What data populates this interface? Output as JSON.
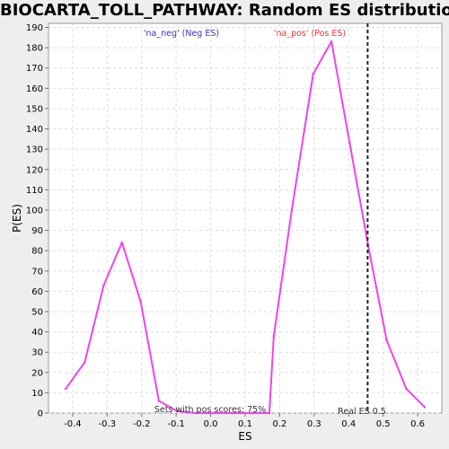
{
  "chart_data": {
    "type": "line",
    "title": "BIOCARTA_TOLL_PATHWAY: Random ES distribution",
    "xlabel": "ES",
    "ylabel": "P(ES)",
    "xlim": [
      -0.47,
      0.67
    ],
    "ylim": [
      0,
      192
    ],
    "xticks": [
      "-0.4",
      "-0.3",
      "-0.2",
      "-0.1",
      "0.0",
      "0.1",
      "0.2",
      "0.3",
      "0.4",
      "0.5",
      "0.6"
    ],
    "yticks": [
      "0",
      "10",
      "20",
      "30",
      "40",
      "50",
      "60",
      "70",
      "80",
      "90",
      "100",
      "110",
      "120",
      "130",
      "140",
      "150",
      "160",
      "170",
      "180",
      "190"
    ],
    "grid": true,
    "series": [
      {
        "color": "#ee44ee",
        "x": [
          -0.42,
          -0.365,
          -0.31,
          -0.257,
          -0.203,
          -0.15,
          -0.097,
          -0.043,
          0.01,
          0.063,
          0.117,
          0.17,
          0.183,
          0.235,
          0.297,
          0.35,
          0.403,
          0.457,
          0.51,
          0.567,
          0.62
        ],
        "y": [
          12,
          25,
          63,
          84,
          55,
          6,
          1,
          0,
          0,
          0,
          0,
          0,
          38,
          100,
          167,
          183,
          133,
          82,
          36,
          12,
          3
        ]
      }
    ],
    "real_es": {
      "value": 0.455,
      "label": "Real ES 0.5"
    },
    "annotations": {
      "neg_label": "'na_neg' (Neg ES)",
      "pos_label": "'na_pos' (Pos ES)",
      "pos_scores": "Sets with pos scores: 75%",
      "neg_color": "#3333cc",
      "pos_color": "#ee3333"
    }
  }
}
